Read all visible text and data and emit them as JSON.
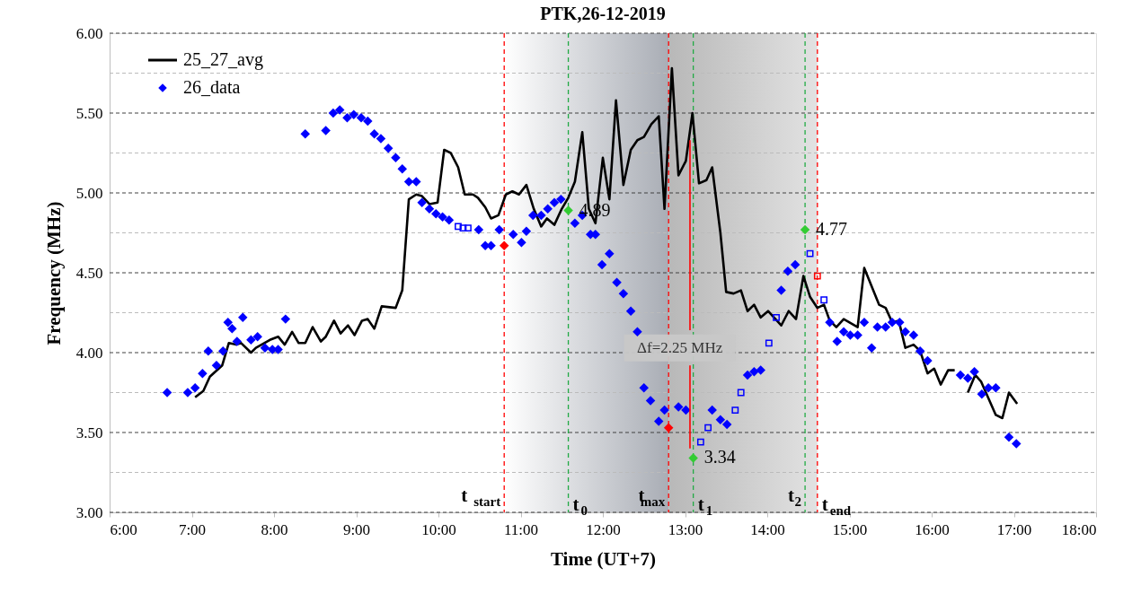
{
  "chart_data": {
    "type": "line",
    "title": "PTK,26-12-2019",
    "xlabel": "Time (UT+7)",
    "ylabel": "Frequency (MHz)",
    "xlim": [
      6,
      18
    ],
    "xticks": [
      {
        "value": 6,
        "label": "6:00"
      },
      {
        "value": 7,
        "label": "7:00"
      },
      {
        "value": 8,
        "label": "8:00"
      },
      {
        "value": 9,
        "label": "9:00"
      },
      {
        "value": 10,
        "label": "10:00"
      },
      {
        "value": 11,
        "label": "11:00"
      },
      {
        "value": 12,
        "label": "12:00"
      },
      {
        "value": 13,
        "label": "13:00"
      },
      {
        "value": 14,
        "label": "14:00"
      },
      {
        "value": 15,
        "label": "15:00"
      },
      {
        "value": 16,
        "label": "16:00"
      },
      {
        "value": 17,
        "label": "17:00"
      },
      {
        "value": 18,
        "label": "18:00"
      }
    ],
    "ylim": [
      3,
      6
    ],
    "yticks": [
      {
        "value": 3,
        "label": "3.00"
      },
      {
        "value": 3.25,
        "label": null
      },
      {
        "value": 3.5,
        "label": "3.50"
      },
      {
        "value": 3.75,
        "label": null
      },
      {
        "value": 4,
        "label": "4.00"
      },
      {
        "value": 4.25,
        "label": null
      },
      {
        "value": 4.5,
        "label": "4.50"
      },
      {
        "value": 4.75,
        "label": null
      },
      {
        "value": 5,
        "label": "5.00"
      },
      {
        "value": 5.25,
        "label": null
      },
      {
        "value": 5.5,
        "label": "5.50"
      },
      {
        "value": 5.75,
        "label": null
      },
      {
        "value": 6,
        "label": "6.00"
      }
    ],
    "grid": "y",
    "legend": "top left",
    "bands": [
      {
        "axis": "x",
        "from": 10.8,
        "to": 12.8,
        "color": "#a9adb5"
      },
      {
        "axis": "x",
        "from": 12.8,
        "to": 14.61,
        "color": "#b8b8b8"
      }
    ],
    "ref_lines": [
      {
        "axis": "x",
        "value": 10.8,
        "label": "t$_{start}$",
        "color": "#ff0000",
        "line_style": "dashed"
      },
      {
        "axis": "x",
        "value": 11.58,
        "label": "t$_{0}$",
        "color": "#22aa44",
        "line_style": "dashed"
      },
      {
        "axis": "x",
        "value": 12.8,
        "label": "t$_{max}$",
        "color": "#ff0000",
        "line_style": "dashed"
      },
      {
        "axis": "x",
        "value": 13.1,
        "label": "t$_{1}$",
        "color": "#22aa44",
        "line_style": "dashed"
      },
      {
        "axis": "x",
        "value": 14.46,
        "label": "t$_{2}$",
        "color": "#22aa44",
        "line_style": "dashed"
      },
      {
        "axis": "x",
        "value": 14.61,
        "label": "t$_{end}$",
        "color": "#ff0000",
        "line_style": "dashed"
      }
    ],
    "annotations": [
      {
        "text": "4.89",
        "x": 11.58,
        "y": 4.89
      },
      {
        "text": "3.34",
        "x": 13.1,
        "y": 3.34
      },
      {
        "text": "4.77",
        "x": 14.46,
        "y": 4.77
      },
      "Δf=2.25 MHz"
    ],
    "series": [
      {
        "name": "25_27_avg",
        "color": "#000000",
        "x": [
          7.04,
          7.14,
          7.22,
          7.37,
          7.45,
          7.54,
          7.6,
          7.72,
          7.78,
          7.95,
          8.05,
          8.13,
          8.22,
          8.3,
          8.38,
          8.47,
          8.57,
          8.63,
          8.73,
          8.81,
          8.9,
          8.98,
          9.07,
          9.14,
          9.22,
          9.31,
          9.48,
          9.56,
          9.64,
          9.73,
          9.8,
          9.89,
          9.99,
          10.07,
          10.15,
          10.24,
          10.32,
          10.42,
          10.48,
          10.57,
          10.64,
          10.73,
          10.82,
          10.9,
          10.98,
          11.07,
          11.16,
          11.25,
          11.32,
          11.41,
          11.5,
          11.58,
          11.66,
          11.75,
          11.83,
          11.91,
          12.0,
          12.08,
          12.16,
          12.25,
          12.34,
          12.42,
          12.5,
          12.59,
          12.68,
          12.75,
          12.84,
          12.92,
          13.01,
          13.09,
          13.17,
          13.26,
          13.33,
          13.43,
          13.5,
          13.59,
          13.68,
          13.76,
          13.84,
          13.92,
          14.01,
          14.17,
          14.26,
          14.35,
          14.44,
          14.52,
          14.61,
          14.69,
          14.76,
          14.84,
          14.93,
          15.1,
          15.18,
          15.36,
          15.44,
          15.52,
          15.6,
          15.68,
          15.78,
          15.86,
          15.95,
          16.03,
          16.11,
          16.2,
          16.28,
          16.36,
          16.44,
          16.53,
          16.6,
          16.78,
          16.86,
          16.94,
          17.04
        ],
        "values": [
          3.72,
          3.76,
          3.85,
          3.92,
          4.06,
          4.05,
          4.06,
          4.0,
          4.03,
          4.08,
          4.1,
          4.05,
          4.13,
          4.06,
          4.06,
          4.16,
          4.07,
          4.1,
          4.2,
          4.12,
          4.17,
          4.11,
          4.2,
          4.21,
          4.15,
          4.29,
          4.28,
          4.39,
          4.96,
          4.99,
          4.98,
          4.93,
          4.94,
          5.27,
          5.25,
          5.16,
          4.99,
          4.99,
          4.97,
          4.91,
          4.84,
          4.86,
          4.99,
          5.01,
          4.99,
          5.05,
          4.9,
          4.79,
          4.84,
          4.8,
          4.9,
          4.97,
          5.07,
          5.38,
          4.9,
          4.81,
          5.22,
          4.96,
          5.58,
          5.05,
          5.27,
          5.33,
          5.35,
          5.43,
          5.48,
          4.9,
          5.78,
          5.11,
          5.2,
          5.5,
          5.06,
          5.08,
          5.16,
          4.75,
          4.38,
          4.37,
          4.39,
          4.26,
          4.3,
          4.22,
          4.26,
          4.17,
          4.26,
          4.21,
          4.48,
          4.35,
          4.28,
          4.3,
          4.2,
          4.16,
          4.21,
          4.16,
          4.53,
          4.3,
          4.28,
          4.19,
          4.2,
          4.03,
          4.05,
          4.01,
          3.87,
          3.9,
          3.8,
          3.89,
          3.89,
          null,
          3.75,
          3.86,
          3.82,
          3.61,
          3.59,
          3.75,
          3.68
        ]
      },
      {
        "name": "26_data",
        "type": "scatter",
        "marker": "diamond",
        "color": "#0000ff",
        "x": [
          6.7,
          6.95,
          7.04,
          7.13,
          7.2,
          7.3,
          7.38,
          7.44,
          7.49,
          7.55,
          7.62,
          7.72,
          7.8,
          7.89,
          7.98,
          8.05,
          8.14,
          8.38,
          8.63,
          8.72,
          8.8,
          8.89,
          8.97,
          9.06,
          9.14,
          9.22,
          9.3,
          9.39,
          9.48,
          9.56,
          9.64,
          9.73,
          9.8,
          9.89,
          9.97,
          10.05,
          10.13,
          10.49,
          10.57,
          10.64,
          10.74,
          10.91,
          11.01,
          11.07,
          11.15,
          11.25,
          11.33,
          11.41,
          11.49,
          11.66,
          11.75,
          11.85,
          11.91,
          11.99,
          12.08,
          12.17,
          12.25,
          12.34,
          12.42,
          12.5,
          12.58,
          12.68,
          12.75,
          12.92,
          13.01,
          13.33,
          13.43,
          13.51,
          13.76,
          13.84,
          13.92,
          14.17,
          14.25,
          14.34,
          14.76,
          14.85,
          14.93,
          15.01,
          15.1,
          15.18,
          15.27,
          15.34,
          15.44,
          15.52,
          15.61,
          15.68,
          15.78,
          15.86,
          15.95,
          16.35,
          16.44,
          16.52,
          16.61,
          16.69,
          16.78,
          16.94,
          17.03
        ],
        "values": [
          3.75,
          3.75,
          3.78,
          3.87,
          4.01,
          3.92,
          4.01,
          4.19,
          4.15,
          4.07,
          4.22,
          4.08,
          4.1,
          4.03,
          4.02,
          4.02,
          4.21,
          5.37,
          5.39,
          5.5,
          5.52,
          5.47,
          5.49,
          5.47,
          5.45,
          5.37,
          5.34,
          5.28,
          5.22,
          5.15,
          5.07,
          5.07,
          4.94,
          4.9,
          4.87,
          4.85,
          4.83,
          4.77,
          4.67,
          4.67,
          4.77,
          4.74,
          4.69,
          4.76,
          4.86,
          4.86,
          4.9,
          4.94,
          4.96,
          4.81,
          4.86,
          4.74,
          4.74,
          4.55,
          4.62,
          4.44,
          4.37,
          4.26,
          4.13,
          3.78,
          3.7,
          3.57,
          3.64,
          3.66,
          3.64,
          3.64,
          3.58,
          3.55,
          3.86,
          3.88,
          3.89,
          4.39,
          4.51,
          4.55,
          4.19,
          4.07,
          4.13,
          4.11,
          4.11,
          4.19,
          4.03,
          4.16,
          4.16,
          4.19,
          4.19,
          4.13,
          4.11,
          4.01,
          3.95,
          3.86,
          3.84,
          3.88,
          3.74,
          3.78,
          3.78,
          3.47,
          3.43
        ]
      },
      {
        "type": "scatter",
        "marker": "square",
        "color": "#0000ff",
        "x": [
          10.24,
          10.3,
          10.36,
          13.19,
          13.28,
          13.61,
          13.68,
          14.02,
          14.11,
          14.52,
          14.69
        ],
        "values": [
          4.79,
          4.78,
          4.78,
          3.44,
          3.53,
          3.64,
          3.75,
          4.06,
          4.22,
          4.62,
          4.33
        ]
      },
      {
        "type": "scatter",
        "marker": "square",
        "color": "#ff0000",
        "x": [
          14.61
        ],
        "values": [
          4.48
        ]
      },
      {
        "type": "scatter",
        "marker": "diamond",
        "color": "#ff0000",
        "x": [
          10.8,
          12.8
        ],
        "values": [
          4.67,
          3.53
        ]
      },
      {
        "type": "scatter",
        "marker": "diamond",
        "color": "#33cc33",
        "x": [
          11.58,
          13.1,
          14.46
        ],
        "values": [
          4.89,
          3.34,
          4.77
        ]
      },
      {
        "type": "line",
        "color": "#ff0000",
        "x": [
          13.06,
          13.06
        ],
        "values": [
          5.33,
          4.14
        ]
      },
      {
        "type": "line",
        "color": "#ff0000",
        "x": [
          13.06,
          13.06
        ],
        "values": [
          3.92,
          3.4
        ]
      }
    ]
  }
}
